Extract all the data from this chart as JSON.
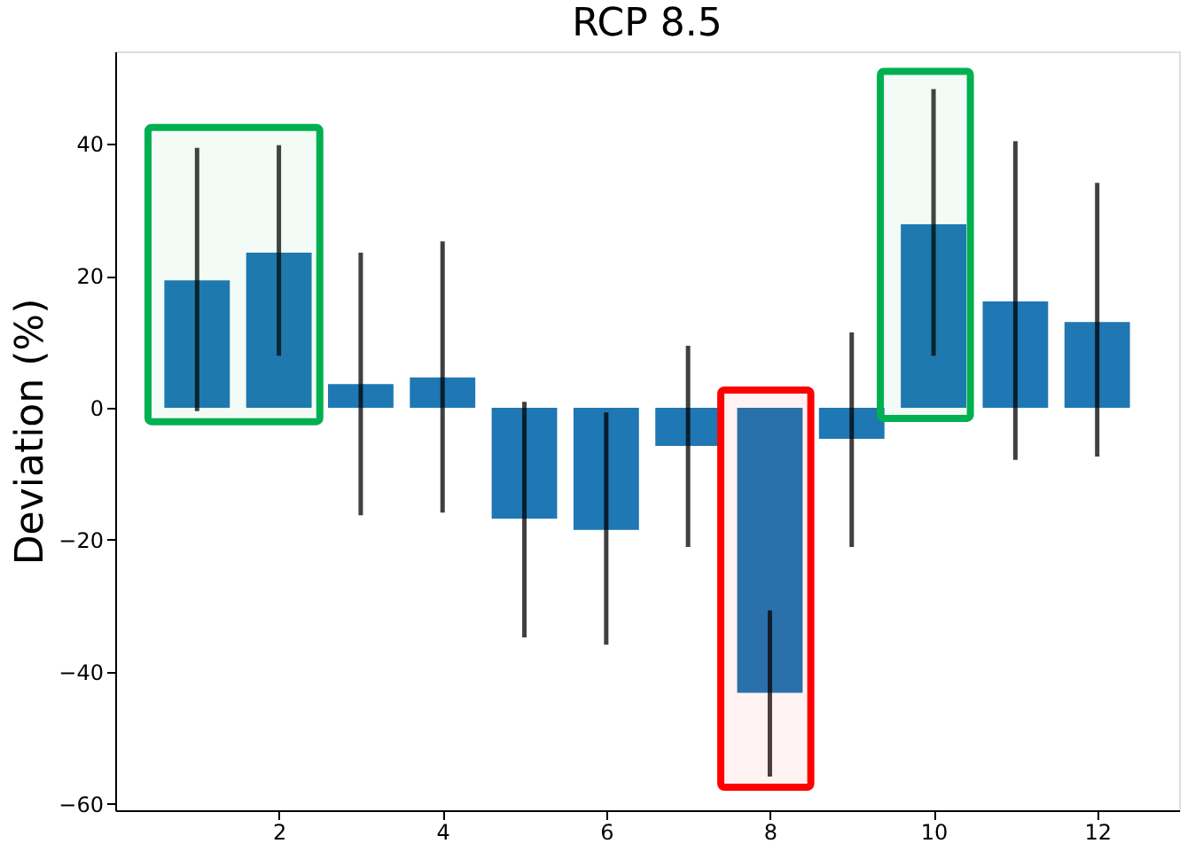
{
  "chart_data": {
    "type": "bar",
    "title": "RCP 8.5",
    "ylabel": "Deviation (%)",
    "x": [
      1,
      2,
      3,
      4,
      5,
      6,
      7,
      8,
      9,
      10,
      11,
      12
    ],
    "series": [
      {
        "color": "#1f77b4",
        "values": [
          19.3,
          23.5,
          3.6,
          4.6,
          -16.8,
          -18.5,
          -5.8,
          -43.2,
          -4.7,
          27.8,
          16.1,
          13.0
        ],
        "errors": [
          [
            -0.5,
            39.4
          ],
          [
            7.9,
            39.8
          ],
          [
            -16.3,
            23.5
          ],
          [
            -15.9,
            25.2
          ],
          [
            -34.8,
            0.9
          ],
          [
            -35.9,
            -0.7
          ],
          [
            -21.1,
            9.4
          ],
          [
            -55.9,
            -30.7
          ],
          [
            -21.1,
            11.4
          ],
          [
            7.9,
            48.3
          ],
          [
            -7.9,
            40.4
          ],
          [
            -7.4,
            34.1
          ]
        ]
      }
    ],
    "xlim": [
      0,
      13
    ],
    "xticks": [
      2,
      4,
      6,
      8,
      10,
      12
    ],
    "ylim": [
      -61,
      54
    ],
    "yticks": [
      -60,
      -40,
      -20,
      0,
      20,
      40
    ],
    "bands": [
      {
        "axis": "x",
        "from": 0.4,
        "to": 2.5,
        "color": "#00b050"
      },
      {
        "axis": "x",
        "from": 7.4,
        "to": 8.5,
        "color": "#ff0000"
      },
      {
        "axis": "x",
        "from": 9.35,
        "to": 10.45,
        "color": "#00b050"
      }
    ],
    "grid": false
  }
}
